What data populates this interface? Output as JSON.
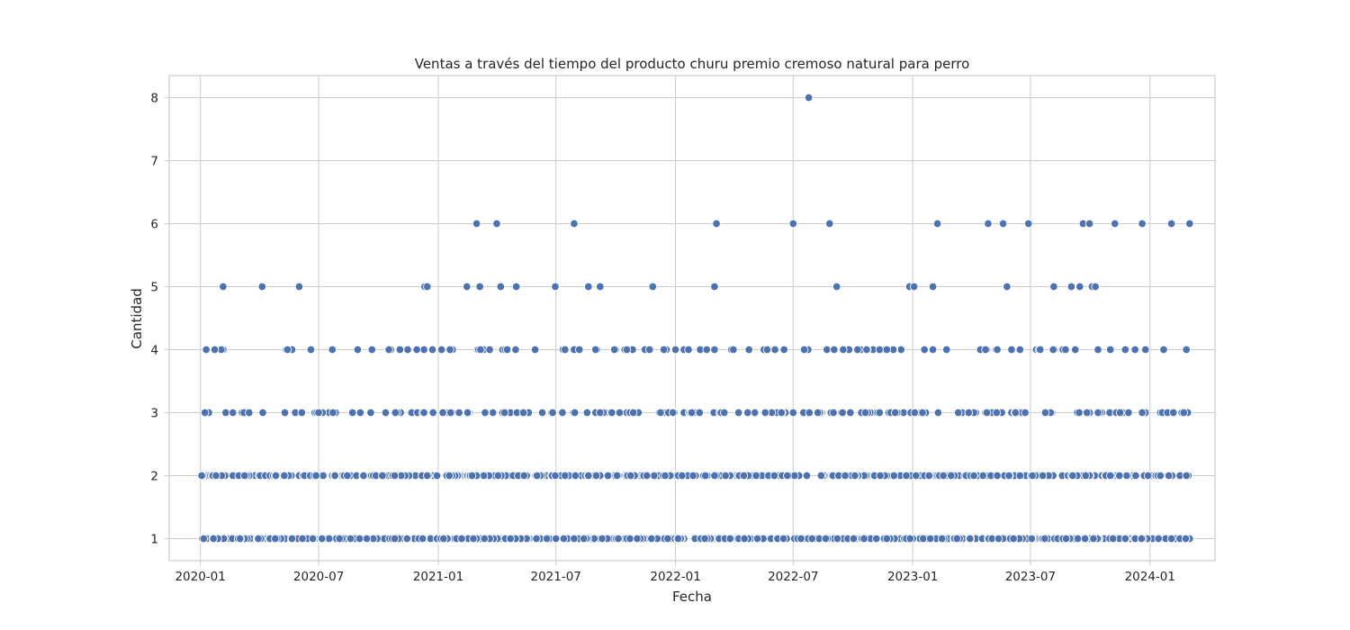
{
  "chart_data": {
    "type": "scatter",
    "title": "Ventas a través del tiempo del producto churu premio cremoso natural para perro",
    "xlabel": "Fecha",
    "ylabel": "Cantidad",
    "x_type": "date",
    "xlim": [
      "2019-11-14",
      "2024-04-10"
    ],
    "ylim": [
      0.65,
      8.35
    ],
    "x_ticks": [
      "2020-01-01",
      "2020-07-01",
      "2021-01-01",
      "2021-07-01",
      "2022-01-01",
      "2022-07-01",
      "2023-01-01",
      "2023-07-01",
      "2024-01-01"
    ],
    "x_tick_labels": [
      "2020-01",
      "2020-07",
      "2021-01",
      "2021-07",
      "2022-01",
      "2022-07",
      "2023-01",
      "2023-07",
      "2024-01"
    ],
    "y_ticks": [
      1,
      2,
      3,
      4,
      5,
      6,
      7,
      8
    ],
    "y_tick_labels": [
      "1",
      "2",
      "3",
      "4",
      "5",
      "6",
      "7",
      "8"
    ],
    "grid": true,
    "legend": "none",
    "color": "#4c72b0",
    "date_range": [
      "2020-01-02",
      "2024-03-04"
    ],
    "points": [
      {
        "x": "2022-07-25",
        "y": 8
      },
      {
        "x": "2021-03-01",
        "y": 6
      },
      {
        "x": "2021-04-01",
        "y": 6
      },
      {
        "x": "2021-07-29",
        "y": 6
      },
      {
        "x": "2022-03-05",
        "y": 6
      },
      {
        "x": "2022-07-01",
        "y": 6
      },
      {
        "x": "2022-08-26",
        "y": 6
      },
      {
        "x": "2023-02-08",
        "y": 6
      },
      {
        "x": "2023-04-27",
        "y": 6
      },
      {
        "x": "2023-05-20",
        "y": 6
      },
      {
        "x": "2023-06-28",
        "y": 6
      },
      {
        "x": "2023-09-20",
        "y": 6
      },
      {
        "x": "2023-09-30",
        "y": 6
      },
      {
        "x": "2023-11-08",
        "y": 6
      },
      {
        "x": "2023-12-20",
        "y": 6
      },
      {
        "x": "2024-02-03",
        "y": 6
      },
      {
        "x": "2024-03-02",
        "y": 6
      },
      {
        "x": "2020-02-05",
        "y": 5
      },
      {
        "x": "2020-04-05",
        "y": 5
      },
      {
        "x": "2020-06-01",
        "y": 5
      },
      {
        "x": "2020-12-11",
        "y": 5
      },
      {
        "x": "2020-12-15",
        "y": 5
      },
      {
        "x": "2021-02-14",
        "y": 5
      },
      {
        "x": "2021-03-06",
        "y": 5
      },
      {
        "x": "2021-04-07",
        "y": 5
      },
      {
        "x": "2021-05-01",
        "y": 5
      },
      {
        "x": "2021-06-30",
        "y": 5
      },
      {
        "x": "2021-08-20",
        "y": 5
      },
      {
        "x": "2021-09-07",
        "y": 5
      },
      {
        "x": "2021-11-27",
        "y": 5
      },
      {
        "x": "2022-03-02",
        "y": 5
      },
      {
        "x": "2022-09-06",
        "y": 5
      },
      {
        "x": "2022-12-27",
        "y": 5
      },
      {
        "x": "2023-01-03",
        "y": 5
      },
      {
        "x": "2023-02-01",
        "y": 5
      },
      {
        "x": "2023-05-26",
        "y": 5
      },
      {
        "x": "2023-08-06",
        "y": 5
      },
      {
        "x": "2023-09-02",
        "y": 5
      },
      {
        "x": "2023-09-15",
        "y": 5
      },
      {
        "x": "2023-10-04",
        "y": 5
      },
      {
        "x": "2023-10-09",
        "y": 5
      }
    ],
    "dense_levels": [
      {
        "y": 4,
        "approx_points": 110
      },
      {
        "y": 3,
        "approx_points": 230
      },
      {
        "y": 2,
        "approx_points": 560
      },
      {
        "y": 1,
        "approx_points": 700
      }
    ]
  }
}
